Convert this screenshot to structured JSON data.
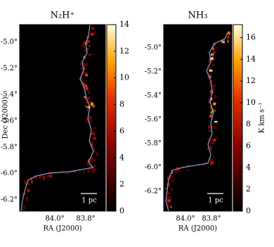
{
  "chart_data": [
    {
      "type": "heatmap",
      "title": "N₂H⁺",
      "xlabel": "RA (J2000)",
      "ylabel": "Dec (J2000)",
      "xlim": [
        84.227,
        83.673
      ],
      "xticks": [
        {
          "value": 84.0,
          "label": "84.0°"
        },
        {
          "value": 83.8,
          "label": "83.8°"
        }
      ],
      "ylim": [
        -6.286,
        -4.866
      ],
      "yticks": [
        {
          "value": -5.0,
          "label": "-5.0°"
        },
        {
          "value": -5.2,
          "label": "-5.2°"
        },
        {
          "value": -5.4,
          "label": "-5.4°"
        },
        {
          "value": -5.6,
          "label": "-5.6°"
        },
        {
          "value": -5.8,
          "label": "-5.8°"
        },
        {
          "value": -6.0,
          "label": "-6.0°"
        },
        {
          "value": -6.2,
          "label": "-6.2°"
        }
      ],
      "clim": [
        0,
        14
      ],
      "cticks": [
        0,
        2,
        4,
        6,
        8,
        10,
        12,
        14
      ],
      "scalebar": "1 pc"
    },
    {
      "type": "heatmap",
      "title": "NH₃",
      "xlabel": "RA (J2000)",
      "xlim": [
        84.168,
        83.643
      ],
      "xticks": [
        {
          "value": 84.0,
          "label": "84.0°"
        },
        {
          "value": 83.8,
          "label": "83.8°"
        }
      ],
      "ylim": [
        -6.365,
        -4.806
      ],
      "yticks": [
        {
          "value": -5.0,
          "label": "-5.0°"
        },
        {
          "value": -5.2,
          "label": "-5.2°"
        },
        {
          "value": -5.4,
          "label": "-5.4°"
        },
        {
          "value": -5.6,
          "label": "-5.6°"
        },
        {
          "value": -5.8,
          "label": "-5.8°"
        },
        {
          "value": -6.0,
          "label": "-6.0°"
        },
        {
          "value": -6.2,
          "label": "-6.2°"
        }
      ],
      "clim": [
        0,
        17.2
      ],
      "cticks": [
        0,
        2,
        4,
        6,
        8,
        10,
        12,
        14,
        16
      ],
      "clabel": "K km s⁻¹",
      "scalebar": "1 pc"
    }
  ]
}
